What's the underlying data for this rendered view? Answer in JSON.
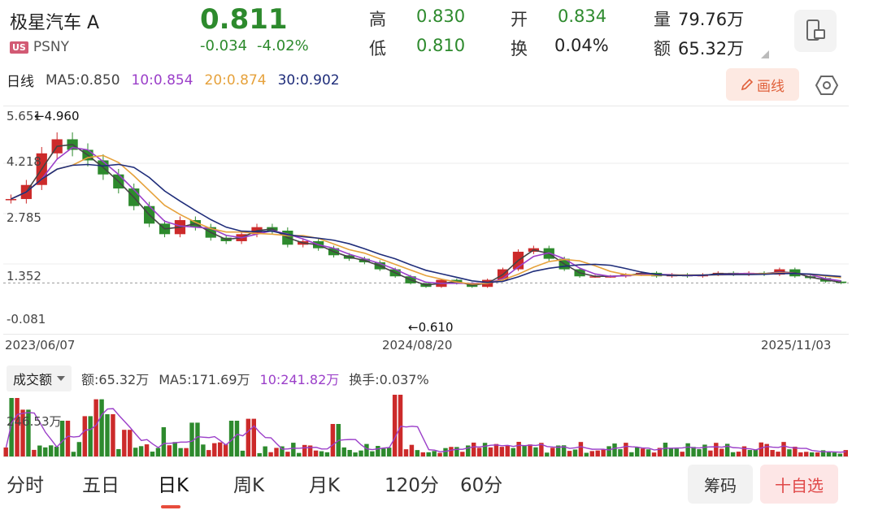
{
  "header": {
    "title": "极星汽车 A",
    "market_badge": "US",
    "ticker": "PSNY",
    "price": "0.811",
    "change": "-0.034",
    "change_pct": "-4.02%",
    "stats": [
      {
        "label": "高",
        "value": "0.830"
      },
      {
        "label": "开",
        "value": "0.834"
      },
      {
        "label": "量",
        "value": "79.76万"
      },
      {
        "label": "低",
        "value": "0.810"
      },
      {
        "label": "换",
        "value": "0.04%"
      },
      {
        "label": "额",
        "value": "65.32万"
      }
    ]
  },
  "ma_bar": {
    "period": "日线",
    "ma5": "MA5:0.850",
    "ma10": "10:0.854",
    "ma20": "20:0.874",
    "ma30": "30:0.902",
    "draw_label": "画线"
  },
  "price_axis": [
    "5.651",
    "4.218",
    "2.785",
    "1.352",
    "-0.081"
  ],
  "annotations": {
    "high": "←4.960",
    "low": "←0.610"
  },
  "dates": [
    "2023/06/07",
    "2024/08/20",
    "2025/11/03"
  ],
  "volume": {
    "selector": "成交额",
    "amount": "额:65.32万",
    "ma5": "MA5:171.69万",
    "ma10": "10:241.82万",
    "turnover": "换手:0.037%",
    "axis_label": "246.53万"
  },
  "tabs": [
    "分时",
    "五日",
    "日K",
    "周K",
    "月K",
    "120分",
    "60分"
  ],
  "active_tab": "日K",
  "buttons": {
    "chips": "筹码",
    "watchlist": "十自选"
  },
  "colors": {
    "up": "#cc2a2a",
    "down": "#2d8a2d",
    "ma5": "#444444",
    "ma10": "#9b3fc9",
    "ma20": "#e6a23c",
    "ma30": "#1f2d7a"
  },
  "chart_data": {
    "type": "line",
    "x_start": "2023/06/07",
    "x_end": "2025/11/03",
    "ylim": [
      -0.081,
      5.651
    ],
    "high": 4.96,
    "low": 0.61,
    "close": [
      3.2,
      3.6,
      4.5,
      4.9,
      4.6,
      4.3,
      3.9,
      3.5,
      3.0,
      2.5,
      2.2,
      2.6,
      2.4,
      2.1,
      2.0,
      2.2,
      2.4,
      2.3,
      1.9,
      2.0,
      1.8,
      1.6,
      1.5,
      1.4,
      1.2,
      1.0,
      0.8,
      0.7,
      0.9,
      0.8,
      0.7,
      0.9,
      1.2,
      1.7,
      1.8,
      1.5,
      1.2,
      1.0,
      1.0,
      1.0,
      1.05,
      1.1,
      1.0,
      1.05,
      1.0,
      1.05,
      1.1,
      1.05,
      1.1,
      1.05,
      1.2,
      1.0,
      0.95,
      0.85,
      0.81
    ]
  }
}
